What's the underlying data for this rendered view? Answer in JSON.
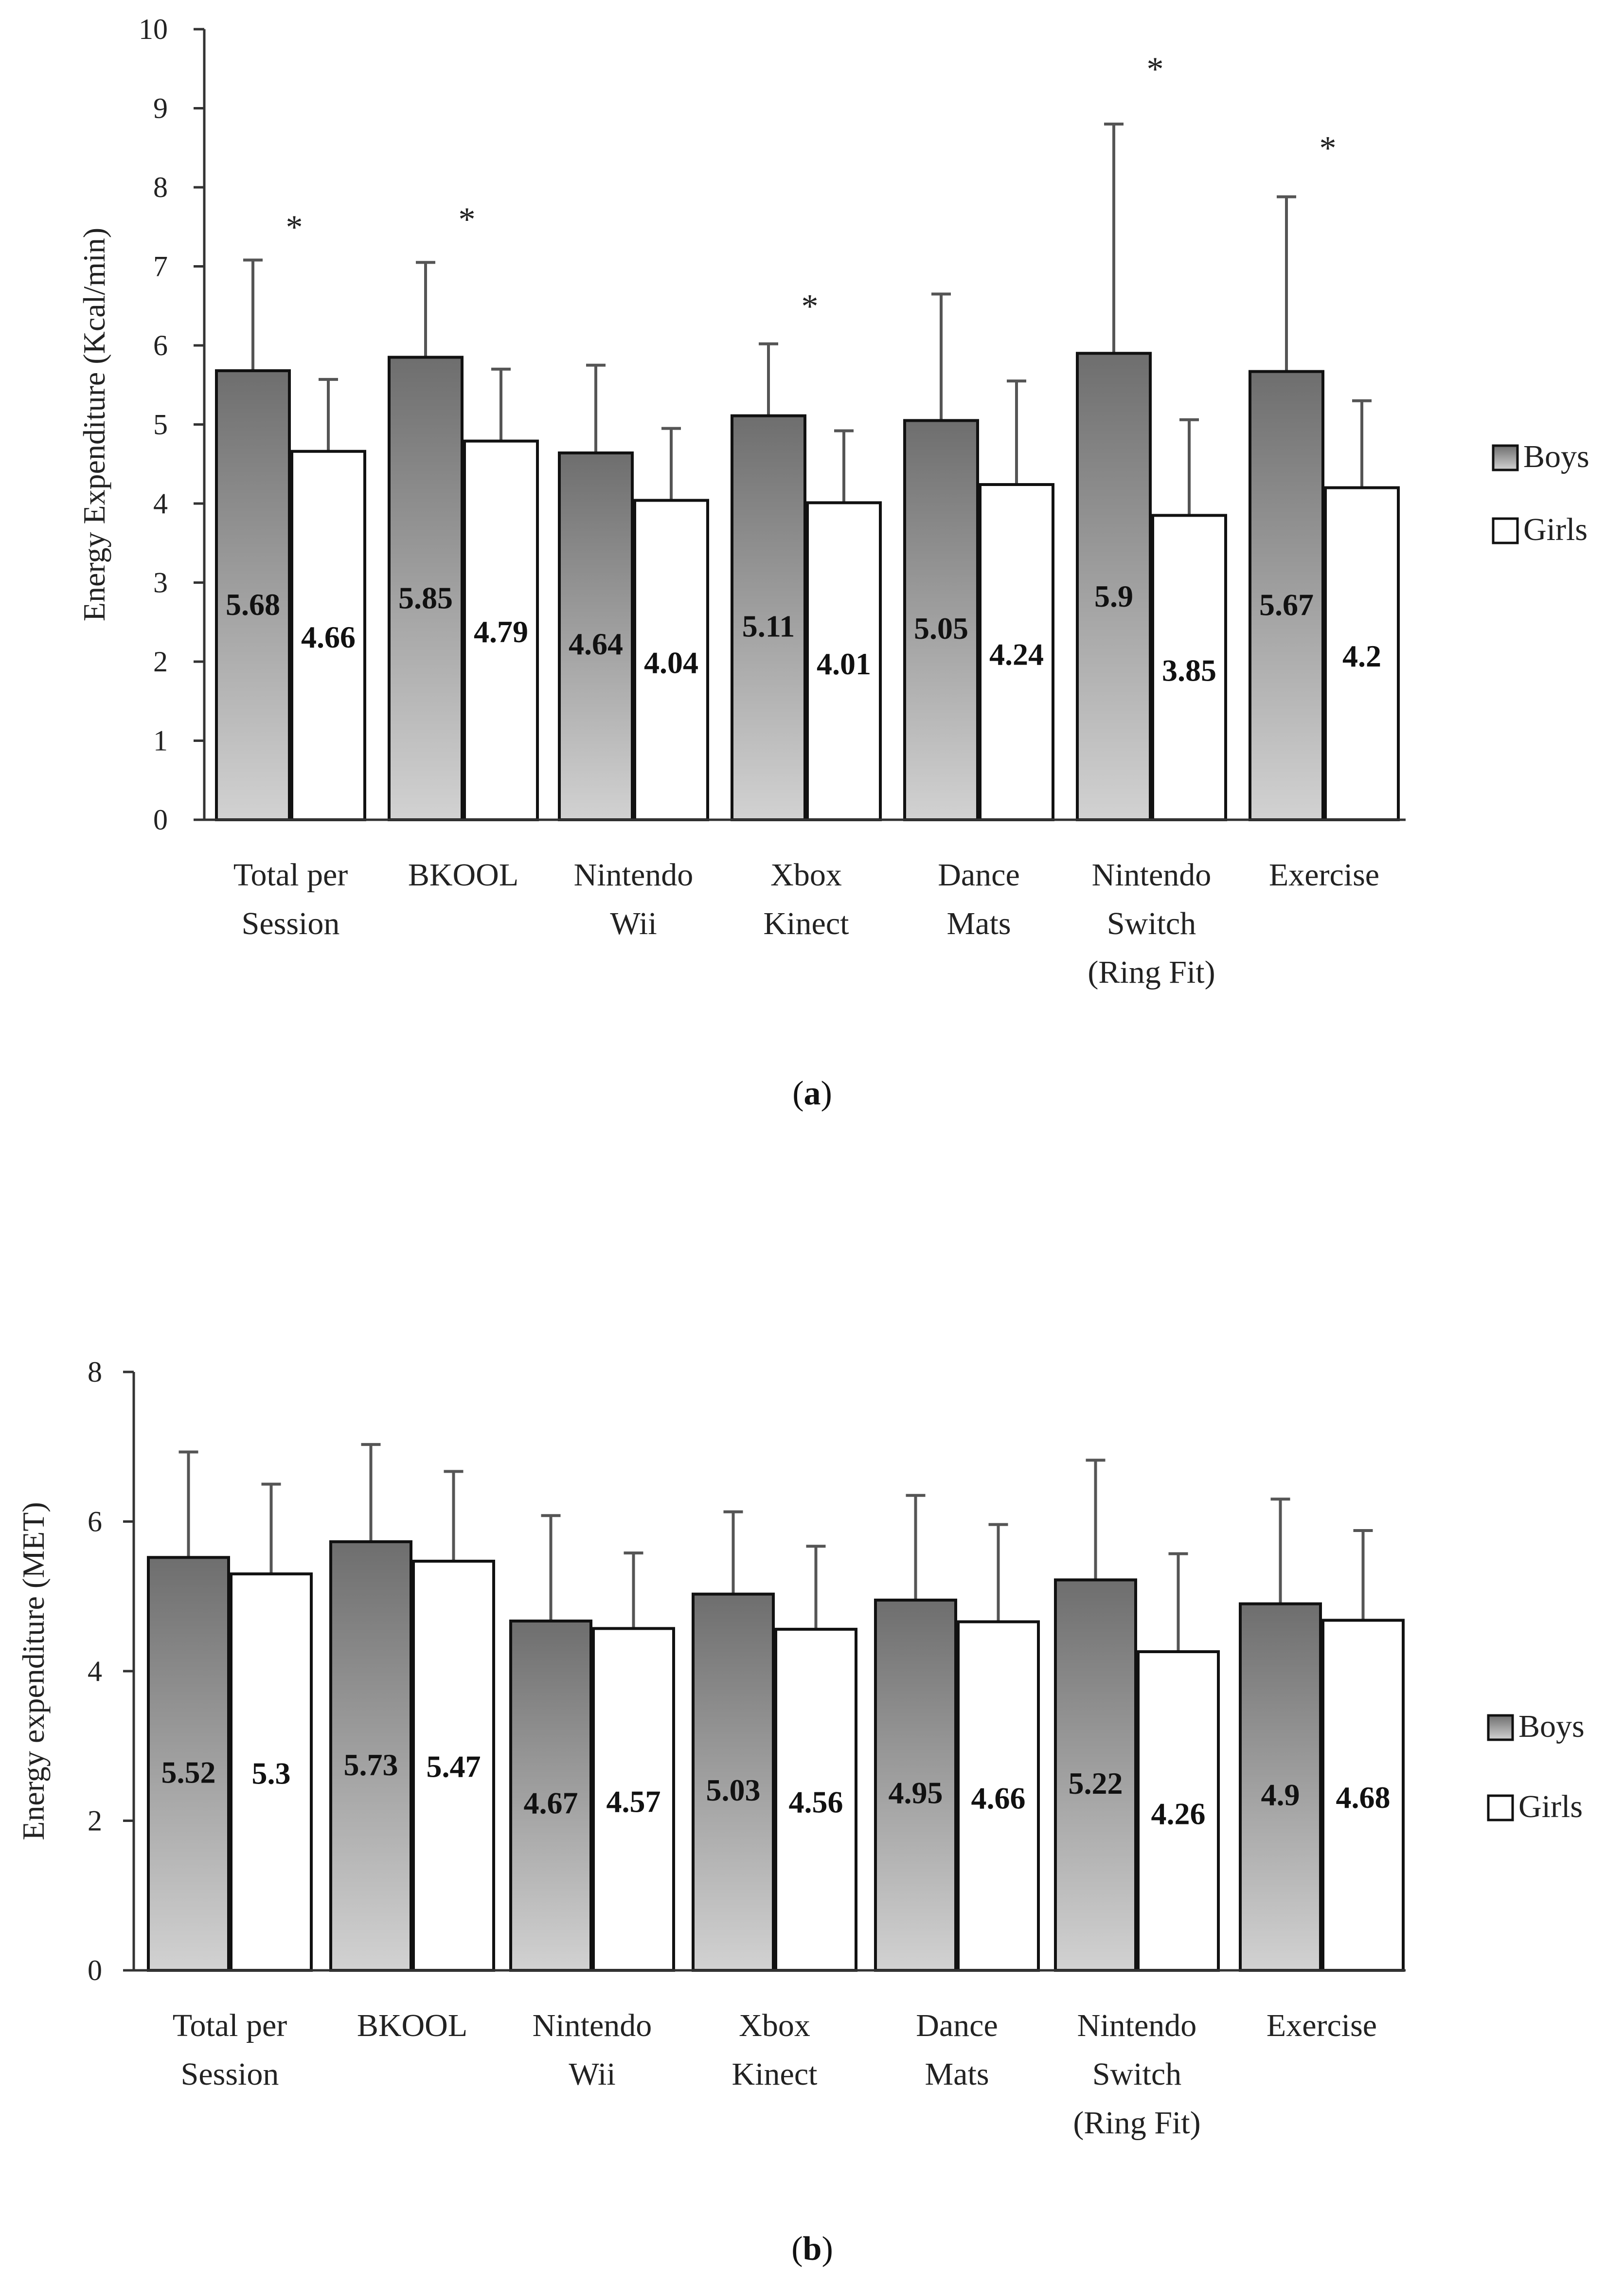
{
  "chart_data": [
    {
      "type": "bar",
      "panel_label": "a",
      "ylabel": "Energy Expenditure (Kcal/min)",
      "xlabel": "",
      "ylim": [
        0,
        10
      ],
      "yticks": [
        0,
        1,
        2,
        3,
        4,
        5,
        6,
        7,
        8,
        9,
        10
      ],
      "categories": [
        [
          "Total per",
          "Session"
        ],
        [
          "BKOOL"
        ],
        [
          "Nintendo",
          "Wii"
        ],
        [
          "Xbox",
          "Kinect"
        ],
        [
          "Dance",
          "Mats"
        ],
        [
          "Nintendo",
          "Switch",
          "(Ring Fit)"
        ],
        [
          "Exercise"
        ]
      ],
      "series": [
        {
          "name": "Boys",
          "values": [
            5.68,
            5.85,
            4.64,
            5.11,
            5.05,
            5.9,
            5.67
          ],
          "labels": [
            "5.68",
            "5.85",
            "4.64",
            "5.11",
            "5.05",
            "5.9",
            "5.67"
          ],
          "error_upper": [
            7.08,
            7.05,
            5.75,
            6.02,
            6.65,
            8.8,
            7.88
          ]
        },
        {
          "name": "Girls",
          "values": [
            4.66,
            4.79,
            4.04,
            4.01,
            4.24,
            3.85,
            4.2
          ],
          "labels": [
            "4.66",
            "4.79",
            "4.04",
            "4.01",
            "4.24",
            "3.85",
            "4.2"
          ],
          "error_upper": [
            5.57,
            5.7,
            4.95,
            4.92,
            5.55,
            5.06,
            5.3
          ]
        }
      ],
      "significance": {
        "marker": "*",
        "categories": [
          0,
          1,
          3,
          5,
          6
        ],
        "y": [
          7.6,
          7.7,
          6.6,
          9.6,
          8.6
        ]
      },
      "legend": [
        "Boys",
        "Girls"
      ],
      "legend_position": "right"
    },
    {
      "type": "bar",
      "panel_label": "b",
      "ylabel": "Energy expenditure (MET)",
      "xlabel": "",
      "ylim": [
        0,
        8
      ],
      "yticks": [
        0,
        2,
        4,
        6,
        8
      ],
      "categories": [
        [
          "Total per",
          "Session"
        ],
        [
          "BKOOL"
        ],
        [
          "Nintendo",
          "Wii"
        ],
        [
          "Xbox",
          "Kinect"
        ],
        [
          "Dance",
          "Mats"
        ],
        [
          "Nintendo",
          "Switch",
          "(Ring Fit)"
        ],
        [
          "Exercise"
        ]
      ],
      "series": [
        {
          "name": "Boys",
          "values": [
            5.52,
            5.73,
            4.67,
            5.03,
            4.95,
            5.22,
            4.9
          ],
          "labels": [
            "5.52",
            "5.73",
            "4.67",
            "5.03",
            "4.95",
            "5.22",
            "4.9"
          ],
          "error_upper": [
            6.93,
            7.03,
            6.08,
            6.13,
            6.35,
            6.82,
            6.3
          ]
        },
        {
          "name": "Girls",
          "values": [
            5.3,
            5.47,
            4.57,
            4.56,
            4.66,
            4.26,
            4.68
          ],
          "labels": [
            "5.3",
            "5.47",
            "4.57",
            "4.56",
            "4.66",
            "4.26",
            "4.68"
          ],
          "error_upper": [
            6.5,
            6.67,
            5.58,
            5.67,
            5.96,
            5.57,
            5.88
          ]
        }
      ],
      "legend": [
        "Boys",
        "Girls"
      ],
      "legend_position": "right"
    }
  ],
  "colors": {
    "boys_top": "#6e6e6e",
    "boys_bottom": "#d2d2d2",
    "girls": "#ffffff",
    "outline": "#111111",
    "error_bar": "#555555",
    "axis": "#333333"
  }
}
